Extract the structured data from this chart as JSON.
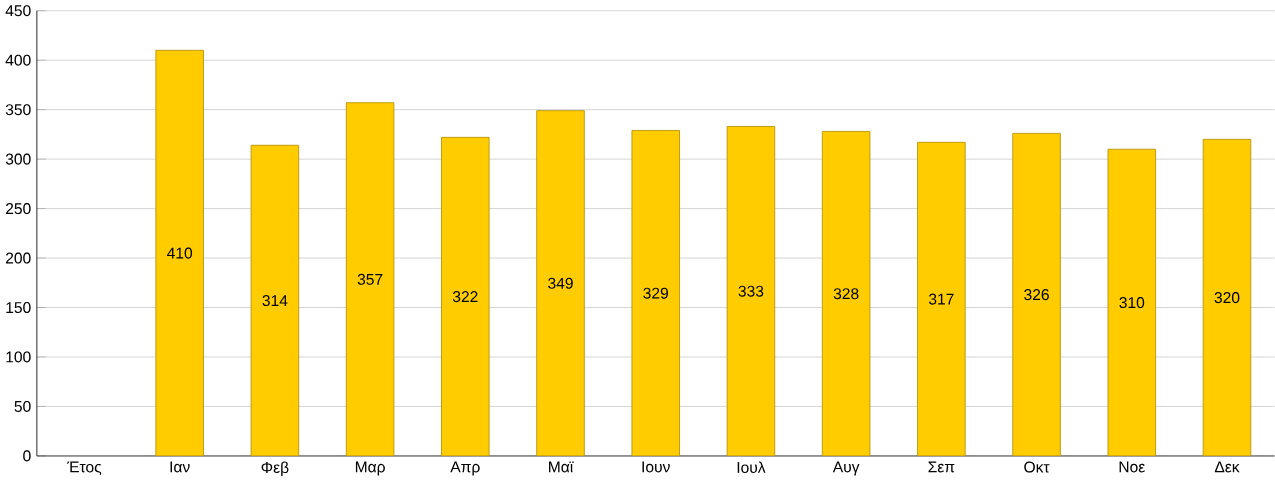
{
  "chart_data": {
    "type": "bar",
    "categories": [
      "Έτος",
      "Ιαν",
      "Φεβ",
      "Μαρ",
      "Απρ",
      "Μαϊ",
      "Ιουν",
      "Ιουλ",
      "Αυγ",
      "Σεπ",
      "Οκτ",
      "Νοε",
      "Δεκ"
    ],
    "values": [
      null,
      410,
      314,
      357,
      322,
      349,
      329,
      333,
      328,
      317,
      326,
      310,
      320
    ],
    "color": "#ffcc00",
    "ylim": [
      0,
      450
    ],
    "yticks": [
      0,
      50,
      100,
      150,
      200,
      250,
      300,
      350,
      400,
      450
    ],
    "grid": "y",
    "data_labels": true
  }
}
